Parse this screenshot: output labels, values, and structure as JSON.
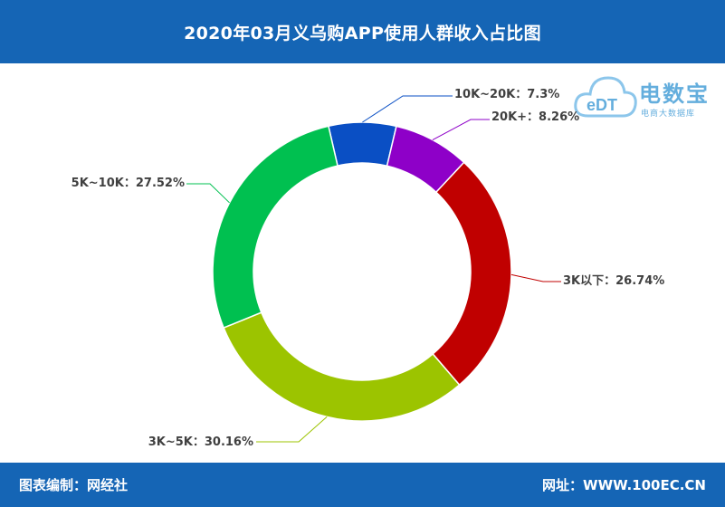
{
  "header": {
    "title": "2020年03月义乌购APP使用人群收入占比图"
  },
  "footer": {
    "source": "图表编制：网经社",
    "website": "网址：WWW.100EC.CN"
  },
  "watermark": {
    "logo_text": "eDT",
    "title": "电数宝",
    "subtitle": "电商大数据库"
  },
  "colors": {
    "header_bg": "#1565b5"
  },
  "chart_data": {
    "type": "pie",
    "donut": true,
    "title": "2020年03月义乌购APP使用人群收入占比图",
    "unit": "%",
    "slices": [
      {
        "label": "10K~20K",
        "value": 7.3,
        "display": "10K~20K：7.3%",
        "color": "#0a4fc4"
      },
      {
        "label": "20K+",
        "value": 8.26,
        "display": "20K+：8.26%",
        "color": "#8e00c8"
      },
      {
        "label": "3K以下",
        "value": 26.74,
        "display": "3K以下：26.74%",
        "color": "#c00000"
      },
      {
        "label": "3K~5K",
        "value": 30.16,
        "display": "3K~5K：30.16%",
        "color": "#9cc400"
      },
      {
        "label": "5K~10K",
        "value": 27.52,
        "display": "5K~10K：27.52%",
        "color": "#00c050"
      }
    ]
  }
}
